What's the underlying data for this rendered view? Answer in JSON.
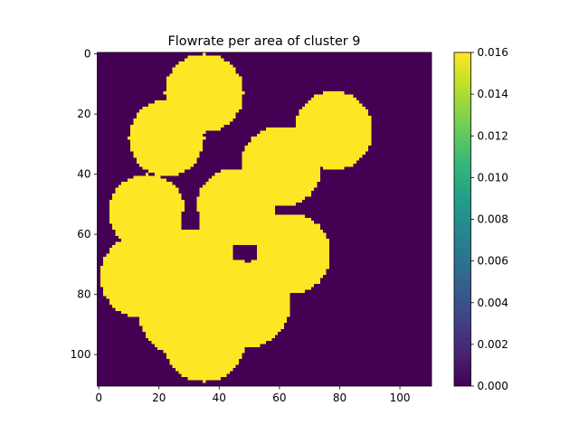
{
  "chart_data": {
    "type": "heatmap",
    "title": "Flowrate per area of cluster 9",
    "xlabel": "",
    "ylabel": "",
    "grid": false,
    "width": 111,
    "height": 111,
    "xlim": [
      0,
      111
    ],
    "ylim": [
      111,
      0
    ],
    "x_ticks": [
      0,
      20,
      40,
      60,
      80,
      100
    ],
    "y_ticks": [
      0,
      20,
      40,
      60,
      80,
      100
    ],
    "low_value": 0.0,
    "high_value": 0.016,
    "colormap": "viridis",
    "low_color": "#440154",
    "high_color": "#fde725",
    "shape_discs": [
      {
        "cx": 35.5,
        "cy": 13.5,
        "r": 13
      },
      {
        "cx": 23,
        "cy": 28.5,
        "r": 12.5
      },
      {
        "cx": 78.5,
        "cy": 26,
        "r": 13
      },
      {
        "cx": 61,
        "cy": 38,
        "r": 13.5
      },
      {
        "cx": 16.5,
        "cy": 53,
        "r": 12.5
      },
      {
        "cx": 46,
        "cy": 51.5,
        "r": 13
      },
      {
        "cx": 64,
        "cy": 67,
        "r": 13.5
      },
      {
        "cx": 15,
        "cy": 74.5,
        "r": 14
      },
      {
        "cx": 34.5,
        "cy": 70,
        "r": 14.5
      },
      {
        "cx": 50,
        "cy": 84,
        "r": 14
      },
      {
        "cx": 28,
        "cy": 87,
        "r": 14
      },
      {
        "cx": 35.5,
        "cy": 96,
        "r": 13.5
      }
    ],
    "shape_holes": [
      {
        "x0": 28,
        "y0": 53,
        "x1": 33,
        "y1": 58
      },
      {
        "x0": 45,
        "y0": 64,
        "x1": 52,
        "y1": 68
      }
    ],
    "colorbar": {
      "ticks": [
        "0.000",
        "0.002",
        "0.004",
        "0.006",
        "0.008",
        "0.010",
        "0.012",
        "0.014",
        "0.016"
      ],
      "min": 0.0,
      "max": 0.016
    }
  }
}
